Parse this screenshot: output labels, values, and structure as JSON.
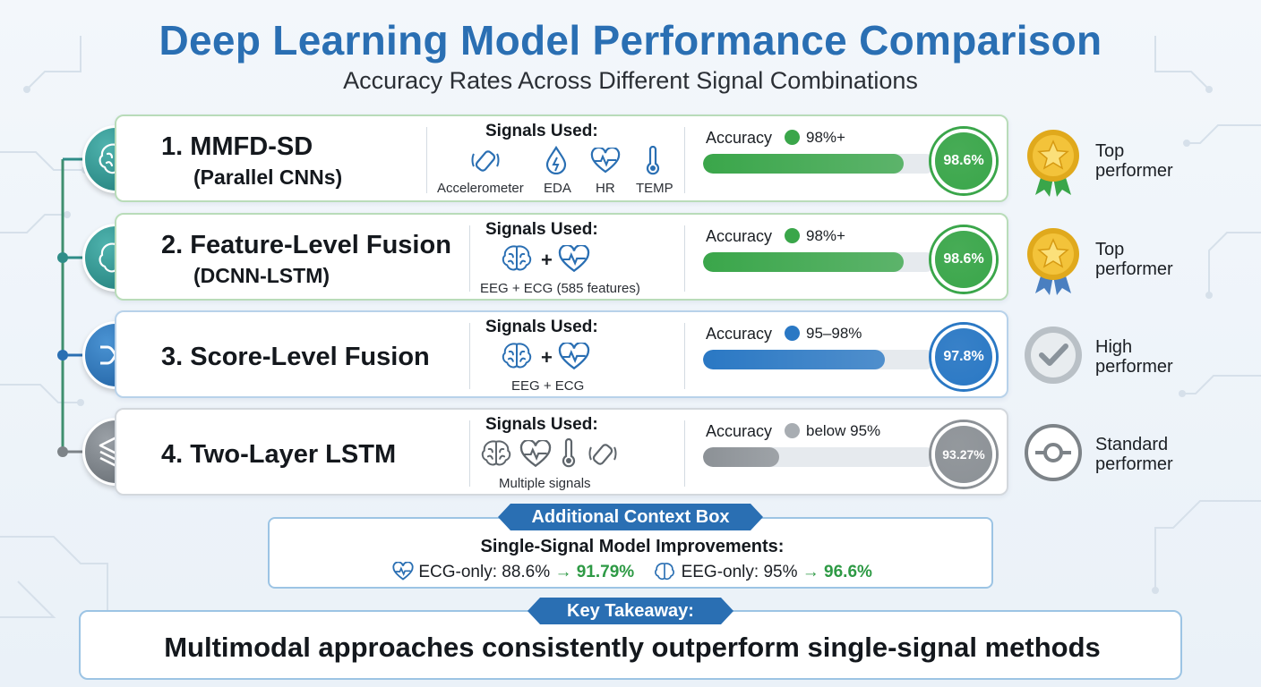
{
  "header": {
    "title": "Deep Learning Model Performance Comparison",
    "subtitle": "Accuracy Rates Across Different Signal Combinations"
  },
  "models": [
    {
      "name": "1. MMFD-SD",
      "subtitle": "(Parallel CNNs)",
      "signals_label": "Signals Used:",
      "signals": [
        "Accelerometer",
        "EDA",
        "HR",
        "TEMP"
      ],
      "accuracy_label": "Accuracy",
      "accuracy_range": "98%+",
      "accuracy_value": "98.6%",
      "accuracy_fraction": 0.986,
      "badge_line1": "Top",
      "badge_line2": "performer",
      "color": "#3aa64a"
    },
    {
      "name": "2. Feature-Level Fusion",
      "subtitle": "(DCNN-LSTM)",
      "signals_label": "Signals Used:",
      "signals_caption": "EEG + ECG (585 features)",
      "plus": "+",
      "accuracy_label": "Accuracy",
      "accuracy_range": "98%+",
      "accuracy_value": "98.6%",
      "accuracy_fraction": 0.986,
      "badge_line1": "Top",
      "badge_line2": "performer",
      "color": "#3aa64a"
    },
    {
      "name": "3. Score-Level Fusion",
      "signals_label": "Signals Used:",
      "signals_caption": "EEG + ECG",
      "plus": "+",
      "accuracy_label": "Accuracy",
      "accuracy_range": "95–98%",
      "accuracy_value": "97.8%",
      "accuracy_fraction": 0.978,
      "badge_line1": "High",
      "badge_line2": "performer",
      "color": "#2a78c4"
    },
    {
      "name": "4. Two-Layer LSTM",
      "signals_label": "Signals Used:",
      "signals_caption": "Multiple signals",
      "accuracy_label": "Accuracy",
      "accuracy_range": "below 95%",
      "accuracy_value": "93.27%",
      "accuracy_fraction": 0.9327,
      "badge_line1": "Standard",
      "badge_line2": "performer",
      "color": "#8c9196"
    }
  ],
  "context": {
    "ribbon": "Additional Context Box",
    "title": "Single-Signal Model Improvements:",
    "ecg_label": "ECG-only: 88.6%",
    "ecg_arrow": "→ 91.79%",
    "eeg_label": "EEG-only: 95%",
    "eeg_arrow": "→ 96.6%"
  },
  "takeaway": {
    "ribbon": "Key Takeaway:",
    "text": "Multimodal approaches consistently outperform single-signal methods"
  }
}
